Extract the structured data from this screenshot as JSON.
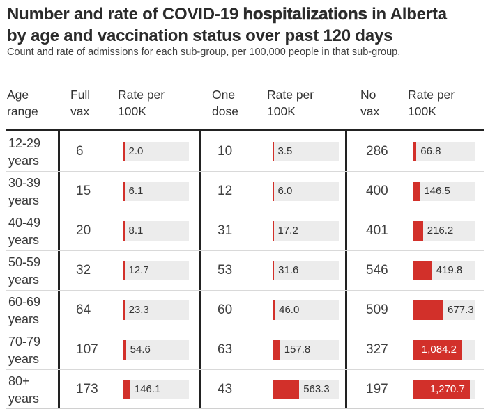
{
  "title": {
    "line1_prefix": "Number and rate of COVID-19 ",
    "line1_emphasis": "hospitalizations",
    "line1_suffix": " in Alberta",
    "line2": "by age and vaccination status over past 120 days"
  },
  "subtitle": "Count and rate of admissions for each sub-group, per 100,000 people in that sub-group.",
  "table": {
    "headers": [
      {
        "id": "age-range",
        "label": "Age\nrange"
      },
      {
        "id": "full-vax",
        "label": "Full\nvax"
      },
      {
        "id": "full-vax-rate",
        "label": "Rate per\n100K"
      },
      {
        "id": "one-dose",
        "label": "One\ndose"
      },
      {
        "id": "one-dose-rate",
        "label": "Rate per\n100K"
      },
      {
        "id": "no-vax",
        "label": "No\nvax"
      },
      {
        "id": "no-vax-rate",
        "label": "Rate per\n100K"
      }
    ],
    "rows": [
      {
        "age": "12-29\nyears",
        "full_vax_count": "6",
        "full_vax_rate": 2.0,
        "full_vax_rate_label": "2.0",
        "one_dose_count": "10",
        "one_dose_rate": 3.5,
        "one_dose_rate_label": "3.5",
        "no_vax_count": "286",
        "no_vax_rate": 66.8,
        "no_vax_rate_label": "66.8"
      },
      {
        "age": "30-39\nyears",
        "full_vax_count": "15",
        "full_vax_rate": 6.1,
        "full_vax_rate_label": "6.1",
        "one_dose_count": "12",
        "one_dose_rate": 6.0,
        "one_dose_rate_label": "6.0",
        "no_vax_count": "400",
        "no_vax_rate": 146.5,
        "no_vax_rate_label": "146.5"
      },
      {
        "age": "40-49\nyears",
        "full_vax_count": "20",
        "full_vax_rate": 8.1,
        "full_vax_rate_label": "8.1",
        "one_dose_count": "31",
        "one_dose_rate": 17.2,
        "one_dose_rate_label": "17.2",
        "no_vax_count": "401",
        "no_vax_rate": 216.2,
        "no_vax_rate_label": "216.2"
      },
      {
        "age": "50-59\nyears",
        "full_vax_count": "32",
        "full_vax_rate": 12.7,
        "full_vax_rate_label": "12.7",
        "one_dose_count": "53",
        "one_dose_rate": 31.6,
        "one_dose_rate_label": "31.6",
        "no_vax_count": "546",
        "no_vax_rate": 419.8,
        "no_vax_rate_label": "419.8"
      },
      {
        "age": "60-69\nyears",
        "full_vax_count": "64",
        "full_vax_rate": 23.3,
        "full_vax_rate_label": "23.3",
        "one_dose_count": "60",
        "one_dose_rate": 46.0,
        "one_dose_rate_label": "46.0",
        "no_vax_count": "509",
        "no_vax_rate": 677.3,
        "no_vax_rate_label": "677.3"
      },
      {
        "age": "70-79\nyears",
        "full_vax_count": "107",
        "full_vax_rate": 54.6,
        "full_vax_rate_label": "54.6",
        "one_dose_count": "63",
        "one_dose_rate": 157.8,
        "one_dose_rate_label": "157.8",
        "no_vax_count": "327",
        "no_vax_rate": 1084.2,
        "no_vax_rate_label": "1,084.2"
      },
      {
        "age": "80+\nyears",
        "full_vax_count": "173",
        "full_vax_rate": 146.1,
        "full_vax_rate_label": "146.1",
        "one_dose_count": "43",
        "one_dose_rate": 563.3,
        "one_dose_rate_label": "563.3",
        "no_vax_count": "197",
        "no_vax_rate": 1270.7,
        "no_vax_rate_label": "1,270.7"
      }
    ]
  },
  "chart_data": {
    "type": "table",
    "title": "Number and rate of COVID-19 hospitalizations in Alberta by age and vaccination status over past 120 days",
    "subtitle": "Count and rate of admissions for each sub-group, per 100,000 people in that sub-group.",
    "categories": [
      "12-29 years",
      "30-39 years",
      "40-49 years",
      "50-59 years",
      "60-69 years",
      "70-79 years",
      "80+ years"
    ],
    "series": [
      {
        "name": "Full vax count",
        "values": [
          6,
          15,
          20,
          32,
          64,
          107,
          173
        ]
      },
      {
        "name": "Full vax rate per 100K",
        "values": [
          2.0,
          6.1,
          8.1,
          12.7,
          23.3,
          54.6,
          146.1
        ]
      },
      {
        "name": "One dose count",
        "values": [
          10,
          12,
          31,
          53,
          60,
          63,
          43
        ]
      },
      {
        "name": "One dose rate per 100K",
        "values": [
          3.5,
          6.0,
          17.2,
          31.6,
          46.0,
          157.8,
          563.3
        ]
      },
      {
        "name": "No vax count",
        "values": [
          286,
          400,
          401,
          546,
          509,
          327,
          197
        ]
      },
      {
        "name": "No vax rate per 100K",
        "values": [
          66.8,
          146.5,
          216.2,
          419.8,
          677.3,
          1084.2,
          1270.7
        ]
      }
    ],
    "bar_scale_max": 1400,
    "legend_position": "none",
    "grid": false,
    "colors": {
      "bar": "#d2302a",
      "bar_track": "#ececec",
      "rule": "#222222",
      "row_separator": "#d9d9d9"
    }
  }
}
